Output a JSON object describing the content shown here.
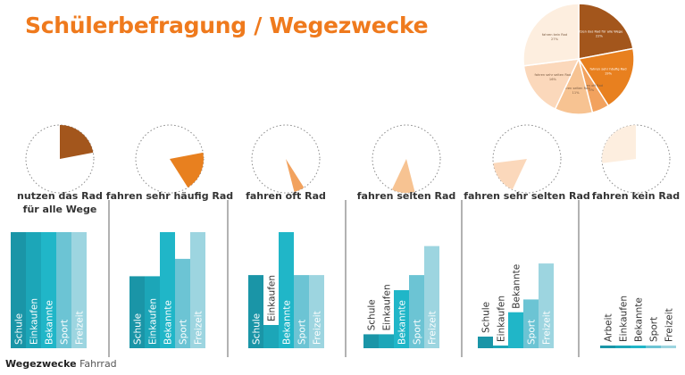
{
  "title": "Schülerbefragung / Wegezwecke",
  "footer": {
    "bold": "Wegezwecke",
    "light": "Fahrrad"
  },
  "chart_data": [
    {
      "type": "pie",
      "title": "",
      "categories": [
        "nutzen das Rad für alle Wege",
        "fahren sehr häufig Rad",
        "fahren oft Rad",
        "fahren selten Rad",
        "fahren sehr selten Rad",
        "fahren kein Rad"
      ],
      "values": [
        22,
        19,
        5,
        11,
        16,
        27
      ],
      "labels": [
        "22%",
        "19%",
        "5%",
        "11%",
        "16%",
        "27%"
      ],
      "colors": [
        "#a3561c",
        "#e8801f",
        "#f2a25e",
        "#f7c392",
        "#fbd8bb",
        "#fdeedf"
      ]
    },
    {
      "type": "bar",
      "groups": [
        {
          "title": [
            "nutzen das Rad",
            "für alle Wege"
          ],
          "categories": [
            "Schule",
            "Einkaufen",
            "Bekannte",
            "Sport",
            "Freizeit"
          ],
          "values": [
            100,
            100,
            100,
            100,
            100
          ]
        },
        {
          "title": [
            "fahren sehr häufig Rad"
          ],
          "categories": [
            "Schule",
            "Einkaufen",
            "Bekannte",
            "Sport",
            "Freizeit"
          ],
          "values": [
            62,
            62,
            100,
            77,
            100
          ]
        },
        {
          "title": [
            "fahren oft Rad"
          ],
          "categories": [
            "Schule",
            "Einkaufen",
            "Bekannte",
            "Sport",
            "Freizeit"
          ],
          "values": [
            63,
            20,
            100,
            63,
            63
          ]
        },
        {
          "title": [
            "fahren selten Rad"
          ],
          "categories": [
            "Schule",
            "Einkaufen",
            "Bekannte",
            "Sport",
            "Freizeit"
          ],
          "values": [
            12,
            12,
            50,
            63,
            88
          ]
        },
        {
          "title": [
            "fahren sehr selten Rad"
          ],
          "categories": [
            "Schule",
            "Einkaufen",
            "Bekannte",
            "Sport",
            "Freizeit"
          ],
          "values": [
            10,
            2,
            31,
            42,
            73
          ]
        },
        {
          "title": [
            "fahren kein Rad"
          ],
          "categories": [
            "Arbeit",
            "Einkaufen",
            "Bekannte",
            "Sport",
            "Freizeit"
          ],
          "values": [
            2,
            2,
            2,
            2,
            2
          ]
        }
      ],
      "bar_colors": [
        "#1a95a7",
        "#1ca6b8",
        "#20b6c8",
        "#6cc4d4",
        "#9dd5e0"
      ],
      "ylim": [
        0,
        100
      ]
    }
  ]
}
